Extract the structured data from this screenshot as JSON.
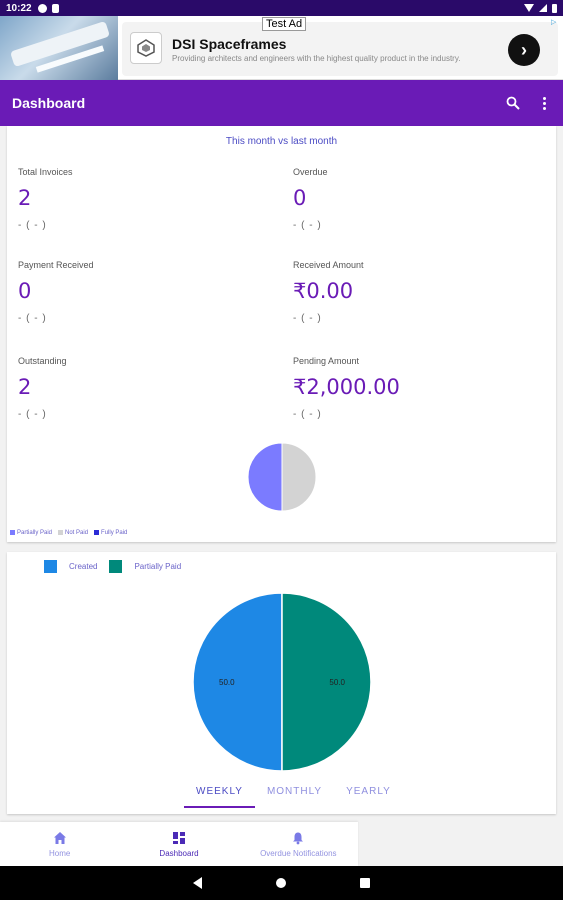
{
  "status_bar": {
    "time": "10:22"
  },
  "ad": {
    "label": "Test Ad",
    "title": "DSI Spaceframes",
    "description": "Providing architects and engineers with the highest quality product in the industry.",
    "arrow": "›"
  },
  "app_bar": {
    "title": "Dashboard",
    "search_icon": "search-icon",
    "menu_icon": "more-vert-icon"
  },
  "summary": {
    "subtitle": "This month vs last month",
    "stats": [
      {
        "label": "Total Invoices",
        "value": "2",
        "change": "- ( - )"
      },
      {
        "label": "Overdue",
        "value": "0",
        "change": "- ( - )"
      },
      {
        "label": "Payment Received",
        "value": "0",
        "change": "- ( - )"
      },
      {
        "label": "Received Amount",
        "value": "₹0.00",
        "change": "- ( - )"
      },
      {
        "label": "Outstanding",
        "value": "2",
        "change": "- ( - )"
      },
      {
        "label": "Pending Amount",
        "value": "₹2,000.00",
        "change": "- ( - )"
      }
    ],
    "legend": [
      {
        "label": "Partially Paid",
        "color": "#7b7bff"
      },
      {
        "label": "Not Paid",
        "color": "#d3d3d3"
      },
      {
        "label": "Fully Paid",
        "color": "#2b2bd6"
      }
    ]
  },
  "chart_data": [
    {
      "type": "pie",
      "categories": [
        "Partially Paid",
        "Not Paid",
        "Fully Paid"
      ],
      "values": [
        50,
        50,
        0
      ],
      "colors": [
        "#7b7bff",
        "#d3d3d3",
        "#2b2bd6"
      ],
      "title": "",
      "legend_position": "bottom-left"
    },
    {
      "type": "pie",
      "categories": [
        "Created",
        "Partially Paid"
      ],
      "values": [
        50.0,
        50.0
      ],
      "data_labels": [
        "50.0",
        "50.0"
      ],
      "colors": [
        "#1e88e5",
        "#00897b"
      ],
      "title": "",
      "legend_position": "top-left"
    }
  ],
  "status_chart": {
    "legend": [
      {
        "label": "Created",
        "color": "#1e88e5"
      },
      {
        "label": "Partially Paid",
        "color": "#00897b"
      }
    ],
    "tabs": [
      {
        "label": "WEEKLY",
        "active": true
      },
      {
        "label": "MONTHLY",
        "active": false
      },
      {
        "label": "YEARLY",
        "active": false
      }
    ]
  },
  "bottom_nav": [
    {
      "label": "Home",
      "icon": "home-icon",
      "active": false
    },
    {
      "label": "Dashboard",
      "icon": "dashboard-icon",
      "active": true
    },
    {
      "label": "Overdue Notifications",
      "icon": "bell-icon",
      "active": false
    }
  ]
}
